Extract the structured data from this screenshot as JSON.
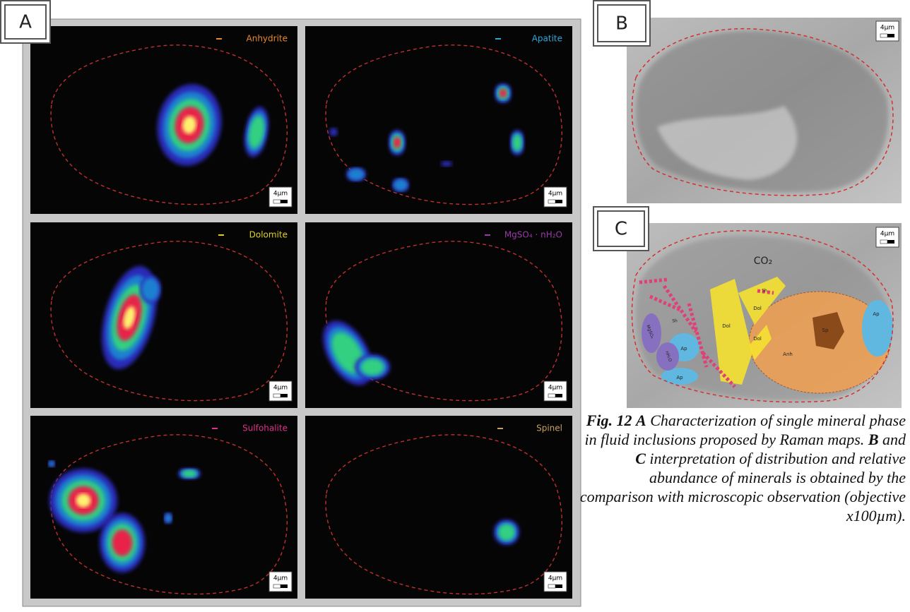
{
  "panel_a": {
    "label": "A",
    "maps": [
      {
        "name": "Anhydrite",
        "color": "#e8892a",
        "scale": "4µm"
      },
      {
        "name": "Apatite",
        "color": "#2aa8d8",
        "scale": "4µm"
      },
      {
        "name": "Dolomite",
        "color": "#e0d020",
        "scale": "4µm"
      },
      {
        "name": "MgSO₄ · nH₂O",
        "color": "#9a3aa8",
        "scale": "4µm"
      },
      {
        "name": "Sulfohalite",
        "color": "#e0308a",
        "scale": "4µm"
      },
      {
        "name": "Spinel",
        "color": "#c8a060",
        "scale": "4µm"
      }
    ]
  },
  "panel_b": {
    "label": "B",
    "scale": "4µm"
  },
  "panel_c": {
    "label": "C",
    "scale": "4µm",
    "labels": [
      "CO₂",
      "Sh",
      "Sh",
      "Dol",
      "Dol",
      "Dol",
      "Sp",
      "Anh",
      "Ap",
      "Ap",
      "Ap",
      "MgSO₄",
      "nH₂O"
    ]
  },
  "caption": {
    "figure": "Fig. 12",
    "a": "A",
    "text1": "Characterization of single mineral phase in fluid inclusions proposed by Raman maps.",
    "b": "B",
    "and": "and",
    "c": "C",
    "text2": "interpretation of distribution and relative abundance of minerals is obtained by the comparison with microscopic observation (objective x100µm)."
  }
}
